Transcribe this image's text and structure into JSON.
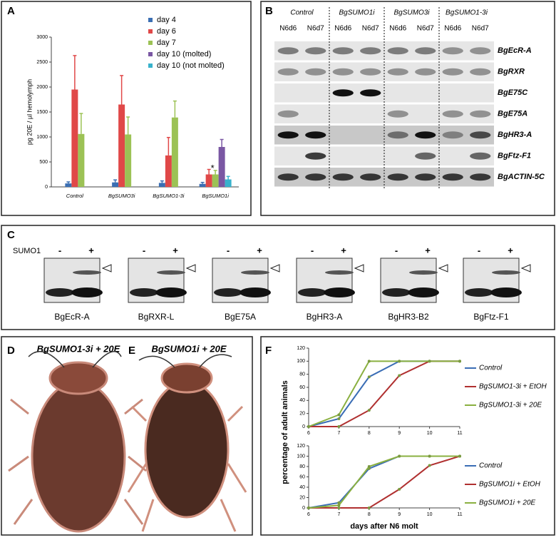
{
  "panel_labels": [
    "A",
    "B",
    "C",
    "D",
    "E",
    "F"
  ],
  "chart_data": [
    {
      "type": "bar",
      "ylabel": "pg 20E / µl hemolymph",
      "categories": [
        "Control",
        "BgSUMO3i",
        "BgSUMO1-3i",
        "BgSUMO1i"
      ],
      "series": [
        {
          "name": "day 4",
          "color": "#3b6fb3",
          "values": [
            70,
            90,
            80,
            60
          ],
          "errors": [
            30,
            50,
            40,
            30
          ]
        },
        {
          "name": "day 6",
          "color": "#e04848",
          "values": [
            1950,
            1650,
            630,
            250
          ],
          "errors": [
            680,
            580,
            360,
            100
          ]
        },
        {
          "name": "day 7",
          "color": "#9cc255",
          "values": [
            1060,
            1050,
            1390,
            250
          ],
          "errors": [
            410,
            350,
            330,
            80
          ]
        },
        {
          "name": "day 10 (molted)",
          "color": "#7a57a3",
          "values": [
            null,
            null,
            null,
            800
          ],
          "errors": [
            null,
            null,
            null,
            150
          ]
        },
        {
          "name": "day 10 (not molted)",
          "color": "#38b2cc",
          "values": [
            null,
            null,
            null,
            150
          ],
          "errors": [
            null,
            null,
            null,
            60
          ]
        }
      ],
      "annotation": "*",
      "ylim": [
        0,
        3000
      ],
      "yticks": [
        0,
        500,
        1000,
        1500,
        2000,
        2500,
        3000
      ]
    },
    {
      "type": "line",
      "ylabel": "percentage of adult animals",
      "x": [
        6,
        7,
        8,
        9,
        10,
        11
      ],
      "xlim": [
        6,
        11
      ],
      "xticks": [
        6,
        7,
        8,
        9,
        10,
        11
      ],
      "ylim": [
        0,
        120
      ],
      "yticks": [
        0,
        20,
        40,
        60,
        80,
        100,
        120
      ],
      "series": [
        {
          "name": "Control",
          "color": "#3a6db5",
          "values": [
            0,
            12,
            76,
            100,
            100,
            100
          ]
        },
        {
          "name": "BgSUMO1-3i + EtOH",
          "color": "#b03030",
          "values": [
            0,
            0,
            25,
            78,
            100,
            100
          ]
        },
        {
          "name": "BgSUMO1-3i + 20E",
          "color": "#8ab040",
          "values": [
            0,
            18,
            100,
            100,
            100,
            100
          ]
        }
      ]
    },
    {
      "type": "line",
      "xlabel": "days after N6 molt",
      "x": [
        6,
        7,
        8,
        9,
        10,
        11
      ],
      "xlim": [
        6,
        11
      ],
      "xticks": [
        6,
        7,
        8,
        9,
        10,
        11
      ],
      "ylim": [
        0,
        120
      ],
      "yticks": [
        0,
        20,
        40,
        60,
        80,
        100,
        120
      ],
      "series": [
        {
          "name": "Control",
          "color": "#3a6db5",
          "values": [
            0,
            10,
            76,
            100,
            100,
            100
          ]
        },
        {
          "name": "BgSUMO1i + EtOH",
          "color": "#b03030",
          "values": [
            0,
            0,
            0,
            36,
            82,
            100
          ]
        },
        {
          "name": "BgSUMO1i + 20E",
          "color": "#8ab040",
          "values": [
            0,
            5,
            80,
            100,
            100,
            100
          ]
        }
      ]
    }
  ],
  "gel_b": {
    "groups": [
      "Control",
      "BgSUMO1i",
      "BgSUMO3i",
      "BgSUMO1-3i"
    ],
    "lanes": [
      "N6d6",
      "N6d7",
      "N6d6",
      "N6d7",
      "N6d6",
      "N6d7",
      "N6d6",
      "N6d7"
    ],
    "genes": [
      "BgEcR-A",
      "BgRXR",
      "BgE75C",
      "BgE75A",
      "BgHR3-A",
      "BgFtz-F1",
      "BgACTIN-5C"
    ]
  },
  "blot_c": {
    "row_label": "SUMO1",
    "minus": "-",
    "plus": "+",
    "blots": [
      "BgEcR-A",
      "BgRXR-L",
      "BgE75A",
      "BgHR3-A",
      "BgHR3-B2",
      "BgFtz-F1"
    ]
  },
  "photos": [
    "BgSUMO1-3i + 20E",
    "BgSUMO1i + 20E"
  ]
}
